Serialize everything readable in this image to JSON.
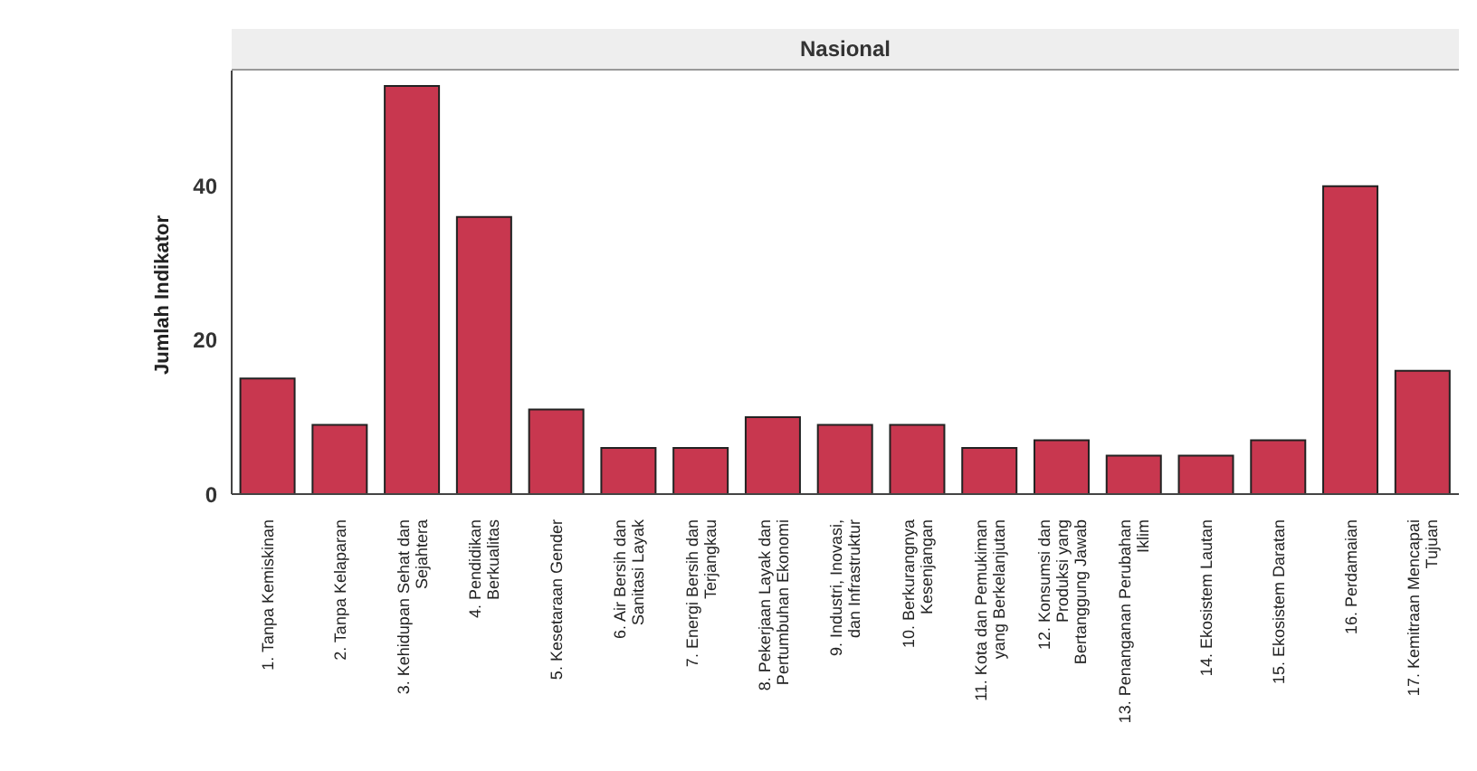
{
  "chart_data": {
    "type": "bar",
    "title": "Nasional",
    "ylabel": "Jumlah Indikator",
    "categories": [
      "1. Tanpa Kemiskinan",
      "2. Tanpa Kelaparan",
      "3. Kehidupan Sehat dan Sejahtera",
      "4. Pendidikan Berkualitas",
      "5. Kesetaraan Gender",
      "6. Air Bersih dan Sanitasi Layak",
      "7. Energi Bersih dan Terjangkau",
      "8. Pekerjaan Layak dan Pertumbuhan Ekonomi",
      "9. Industri, Inovasi, dan Infrastruktur",
      "10. Berkurangnya Kesenjangan",
      "11. Kota dan Pemukiman yang Berkelanjutan",
      "12. Konsumsi dan Produksi yang Bertanggung Jawab",
      "13. Penanganan Perubahan Iklim",
      "14. Ekosistem Lautan",
      "15. Ekosistem Daratan",
      "16. Perdamaian",
      "17. Kemitraan Mencapai Tujuan"
    ],
    "values": [
      15,
      9,
      53,
      36,
      11,
      6,
      6,
      10,
      9,
      9,
      6,
      7,
      5,
      5,
      7,
      40,
      16
    ],
    "color": "#c8374f",
    "ylim": [
      0,
      55
    ],
    "yticks": [
      0,
      20,
      40
    ],
    "grid": false
  }
}
